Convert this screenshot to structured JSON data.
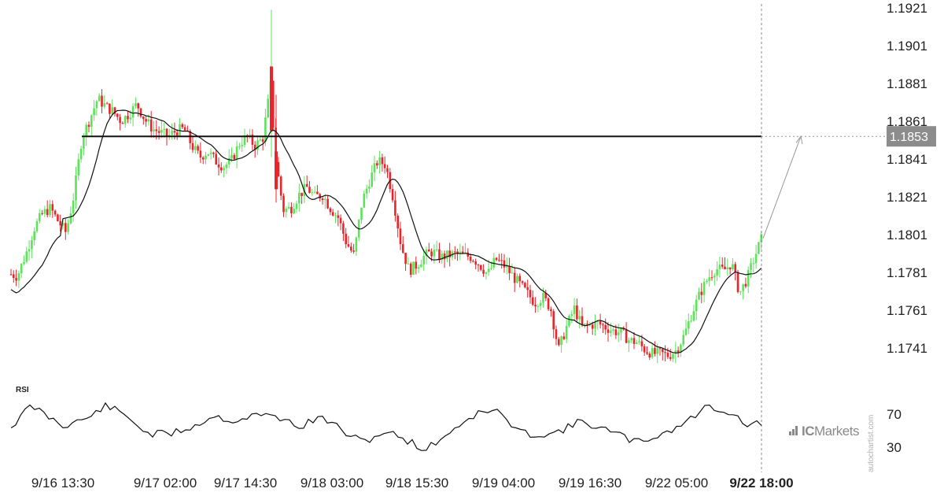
{
  "chart_data": {
    "type": "candlestick",
    "title": "",
    "price_axis": {
      "ticks": [
        "1.1921",
        "1.1901",
        "1.1881",
        "1.1861",
        "1.1841",
        "1.1821",
        "1.1801",
        "1.1781",
        "1.1761",
        "1.1741"
      ],
      "range": [
        1.172,
        1.1925
      ]
    },
    "time_axis": {
      "ticks": [
        "9/16 13:30",
        "9/17 02:00",
        "9/17 14:30",
        "9/18 03:00",
        "9/18 15:30",
        "9/19 04:00",
        "9/19 16:30",
        "9/22 05:00",
        "9/22 18:00"
      ],
      "highlighted": "9/22 18:00"
    },
    "level": {
      "value": 1.1853,
      "label": "1.1853"
    },
    "projection": {
      "from": 1.1799,
      "to": 1.1853
    },
    "rsi": {
      "label": "RSI",
      "ticks": [
        "70",
        "30"
      ]
    },
    "colors": {
      "up": "#5de35a",
      "down": "#e8252b",
      "ma": "#111111",
      "level": "#111111",
      "tag": "#8c8c8c"
    }
  },
  "branding": {
    "logo_text": "ICMarkets",
    "logo_ic": "IC",
    "logo_rest": "Markets",
    "watermark": "autochartist.com"
  }
}
